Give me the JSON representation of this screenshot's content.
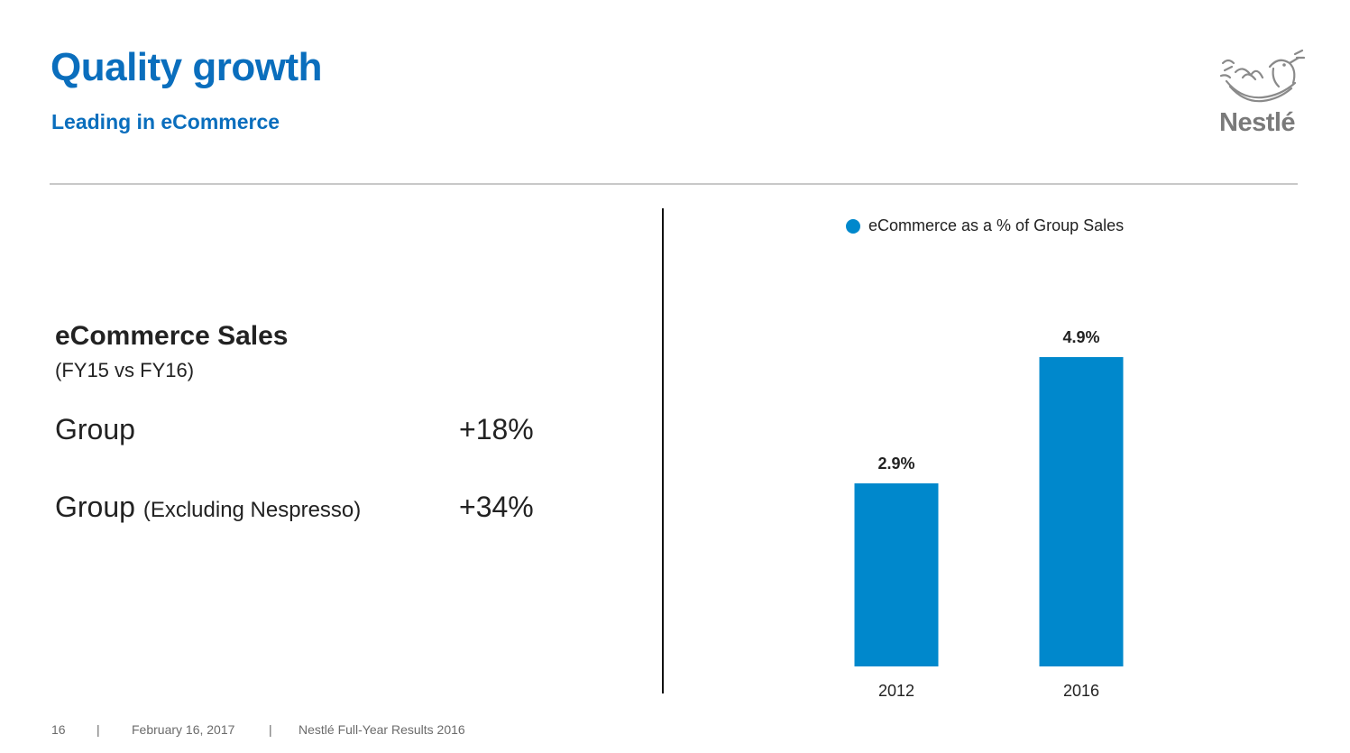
{
  "header": {
    "title": "Quality growth",
    "subtitle": "Leading in eCommerce"
  },
  "logo": {
    "wordmark": "Nestlé",
    "icon": "nest-birds-logo-icon"
  },
  "sales": {
    "heading": "eCommerce Sales",
    "period": "(FY15 vs FY16)",
    "rows": [
      {
        "label": "Group",
        "sublabel": "",
        "value": "+18%"
      },
      {
        "label": "Group",
        "sublabel": "(Excluding Nespresso)",
        "value": "+34%"
      }
    ]
  },
  "chart_data": {
    "type": "bar",
    "title": "",
    "legend": [
      "eCommerce as a % of Group Sales"
    ],
    "legend_position": "top",
    "categories": [
      "2012",
      "2016"
    ],
    "series": [
      {
        "name": "eCommerce as a % of Group Sales",
        "values": [
          2.9,
          4.9
        ],
        "color": "#0088cc"
      }
    ],
    "data_labels": [
      "2.9%",
      "4.9%"
    ],
    "xlabel": "",
    "ylabel": "",
    "ylim": [
      0,
      5.5
    ],
    "grid": false
  },
  "footer": {
    "page": "16",
    "separator": "|",
    "date": "February 16, 2017",
    "event": "Nestlé Full-Year Results 2016"
  },
  "colors": {
    "brand_blue": "#0a6ebd",
    "bar_blue": "#0088cc",
    "rule_gray": "#c8c8c8",
    "text": "#222222"
  }
}
